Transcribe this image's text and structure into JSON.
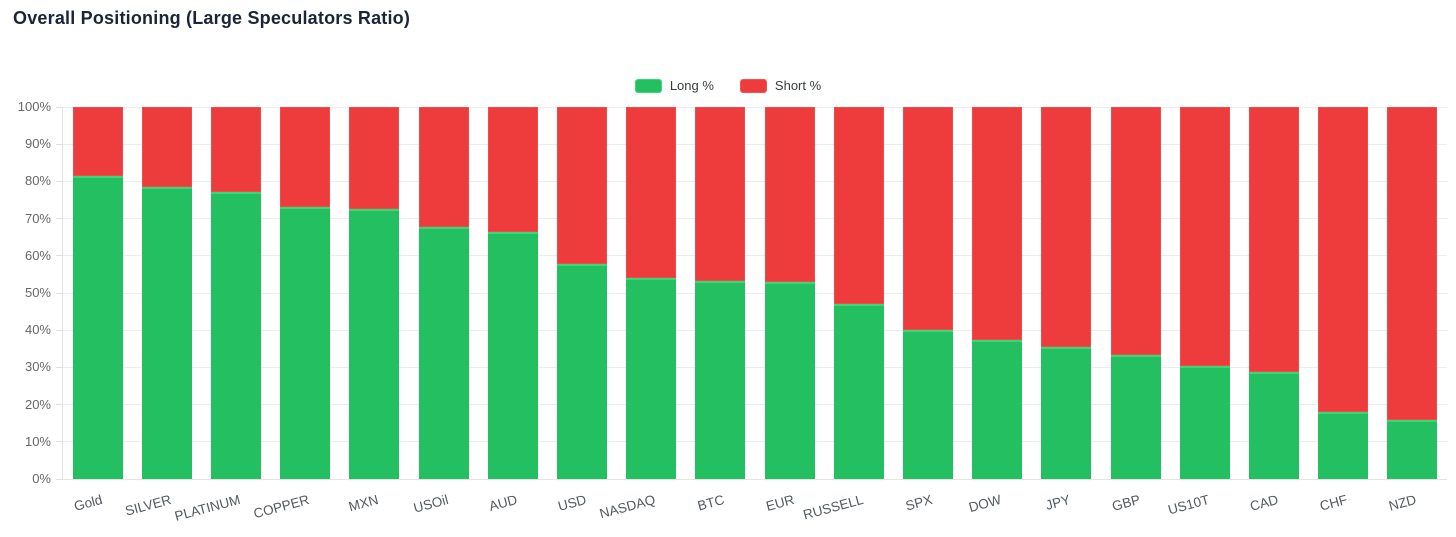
{
  "chart": {
    "title": "Overall Positioning (Large Speculators Ratio)"
  },
  "colors": {
    "long_fill": "#23bf61",
    "long_stroke": "#36d877",
    "short_fill": "#ee3c3c",
    "short_stroke": "#f25555",
    "title_text": "#1b2537",
    "axis_label": "#666666",
    "x_label": "#52595e",
    "gridline": "#ececec"
  },
  "chart_data": {
    "type": "bar",
    "stacked": true,
    "stacked_percent": true,
    "title": "Overall Positioning (Large Speculators Ratio)",
    "categories": [
      "Gold",
      "SILVER",
      "PLATINUM",
      "COPPER",
      "MXN",
      "USOil",
      "AUD",
      "USD",
      "NASDAQ",
      "BTC",
      "EUR",
      "RUSSELL",
      "SPX",
      "DOW",
      "JPY",
      "GBP",
      "US10T",
      "CAD",
      "CHF",
      "NZD"
    ],
    "series": [
      {
        "name": "Long %",
        "color": "#23bf61",
        "values": [
          81.5,
          78.5,
          77.2,
          73.2,
          72.7,
          67.8,
          66.5,
          57.7,
          53.9,
          53.1,
          53.0,
          47.0,
          40.0,
          37.3,
          35.4,
          33.3,
          30.4,
          28.8,
          18.0,
          15.9
        ]
      },
      {
        "name": "Short %",
        "color": "#ee3c3c",
        "values": [
          18.5,
          21.5,
          22.8,
          26.8,
          27.3,
          32.2,
          33.5,
          42.3,
          46.1,
          46.9,
          47.0,
          53.0,
          60.0,
          62.7,
          64.6,
          66.7,
          69.6,
          71.2,
          82.0,
          84.1
        ]
      }
    ],
    "xlabel": "",
    "ylabel": "",
    "ylim": [
      0,
      100
    ],
    "yticks": [
      "0%",
      "10%",
      "20%",
      "30%",
      "40%",
      "50%",
      "60%",
      "70%",
      "80%",
      "90%",
      "100%"
    ],
    "legend_position": "top-center",
    "grid": "horizontal",
    "x_label_rotation_deg": -15
  }
}
